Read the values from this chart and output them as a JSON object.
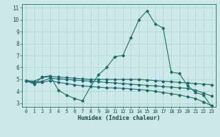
{
  "xlabel": "Humidex (Indice chaleur)",
  "bg_color": "#cce8e8",
  "grid_color": "#b0d4d4",
  "line_color": "#1a6b6b",
  "xlim": [
    -0.5,
    23.5
  ],
  "ylim": [
    2.7,
    11.3
  ],
  "xticks": [
    0,
    1,
    2,
    3,
    4,
    5,
    6,
    7,
    8,
    9,
    10,
    11,
    12,
    13,
    14,
    15,
    16,
    17,
    18,
    19,
    20,
    21,
    22,
    23
  ],
  "yticks": [
    3,
    4,
    5,
    6,
    7,
    8,
    9,
    10,
    11
  ],
  "series": [
    {
      "x": [
        0,
        1,
        2,
        3,
        4,
        5,
        6,
        7,
        8,
        9,
        10,
        11,
        12,
        13,
        14,
        15,
        16,
        17,
        18,
        19,
        20,
        21,
        22,
        23
      ],
      "y": [
        4.9,
        4.6,
        5.2,
        5.3,
        4.1,
        3.7,
        3.4,
        3.2,
        4.4,
        5.4,
        6.0,
        6.9,
        7.0,
        8.5,
        10.0,
        10.75,
        9.65,
        9.3,
        5.6,
        5.5,
        4.5,
        3.9,
        3.7,
        2.7
      ]
    },
    {
      "x": [
        0,
        1,
        2,
        3,
        4,
        5,
        6,
        7,
        8,
        9,
        10,
        11,
        12,
        13,
        14,
        15,
        16,
        17,
        18,
        19,
        20,
        21,
        22,
        23
      ],
      "y": [
        4.9,
        4.85,
        5.15,
        5.25,
        5.2,
        5.15,
        5.1,
        5.05,
        5.0,
        5.0,
        5.0,
        5.0,
        5.0,
        5.0,
        5.0,
        4.95,
        4.9,
        4.85,
        4.8,
        4.75,
        4.7,
        4.65,
        4.6,
        4.55
      ]
    },
    {
      "x": [
        0,
        1,
        2,
        3,
        4,
        5,
        6,
        7,
        8,
        9,
        10,
        11,
        12,
        13,
        14,
        15,
        16,
        17,
        18,
        19,
        20,
        21,
        22,
        23
      ],
      "y": [
        4.9,
        4.75,
        4.85,
        5.1,
        5.05,
        5.0,
        4.95,
        4.9,
        4.85,
        4.8,
        4.75,
        4.7,
        4.65,
        4.6,
        4.55,
        4.5,
        4.45,
        4.4,
        4.35,
        4.3,
        4.25,
        4.1,
        3.85,
        3.6
      ]
    },
    {
      "x": [
        0,
        1,
        2,
        3,
        4,
        5,
        6,
        7,
        8,
        9,
        10,
        11,
        12,
        13,
        14,
        15,
        16,
        17,
        18,
        19,
        20,
        21,
        22,
        23
      ],
      "y": [
        4.9,
        4.7,
        4.75,
        4.9,
        4.75,
        4.65,
        4.55,
        4.45,
        4.4,
        4.35,
        4.3,
        4.28,
        4.25,
        4.2,
        4.15,
        4.1,
        4.0,
        3.9,
        3.8,
        3.7,
        3.55,
        3.4,
        3.1,
        2.8
      ]
    }
  ]
}
